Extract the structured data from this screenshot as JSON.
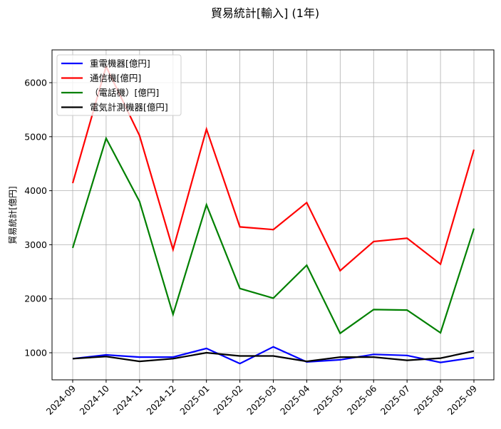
{
  "chart_data": {
    "type": "line",
    "title": "貿易統計[輸入] (1年)",
    "xlabel": "",
    "ylabel": "貿易統計[億円]",
    "x": [
      "2024-09",
      "2024-10",
      "2024-11",
      "2024-12",
      "2025-01",
      "2025-02",
      "2025-03",
      "2025-04",
      "2025-05",
      "2025-06",
      "2025-07",
      "2025-08",
      "2025-09"
    ],
    "yticks": [
      1000,
      2000,
      3000,
      4000,
      5000,
      6000
    ],
    "ylim": [
      500,
      6550
    ],
    "grid": true,
    "legend_position": "upper left",
    "series": [
      {
        "name": "重電機器[億円]",
        "color": "#0000ff",
        "values": [
          890,
          960,
          920,
          920,
          1080,
          800,
          1110,
          830,
          870,
          970,
          950,
          820,
          910
        ]
      },
      {
        "name": "通信機[億円]",
        "color": "#ff0000",
        "values": [
          4140,
          6300,
          5020,
          2910,
          5140,
          3330,
          3280,
          3780,
          2520,
          3060,
          3120,
          2640,
          4760
        ]
      },
      {
        "name": "（電話機）[億円]",
        "color": "#008000",
        "values": [
          2940,
          4970,
          3800,
          1710,
          3740,
          2190,
          2010,
          2620,
          1360,
          1800,
          1790,
          1370,
          3300
        ]
      },
      {
        "name": "電気計測機器[億円]",
        "color": "#000000",
        "values": [
          890,
          930,
          840,
          890,
          1000,
          940,
          940,
          840,
          920,
          920,
          860,
          900,
          1030
        ]
      }
    ]
  }
}
